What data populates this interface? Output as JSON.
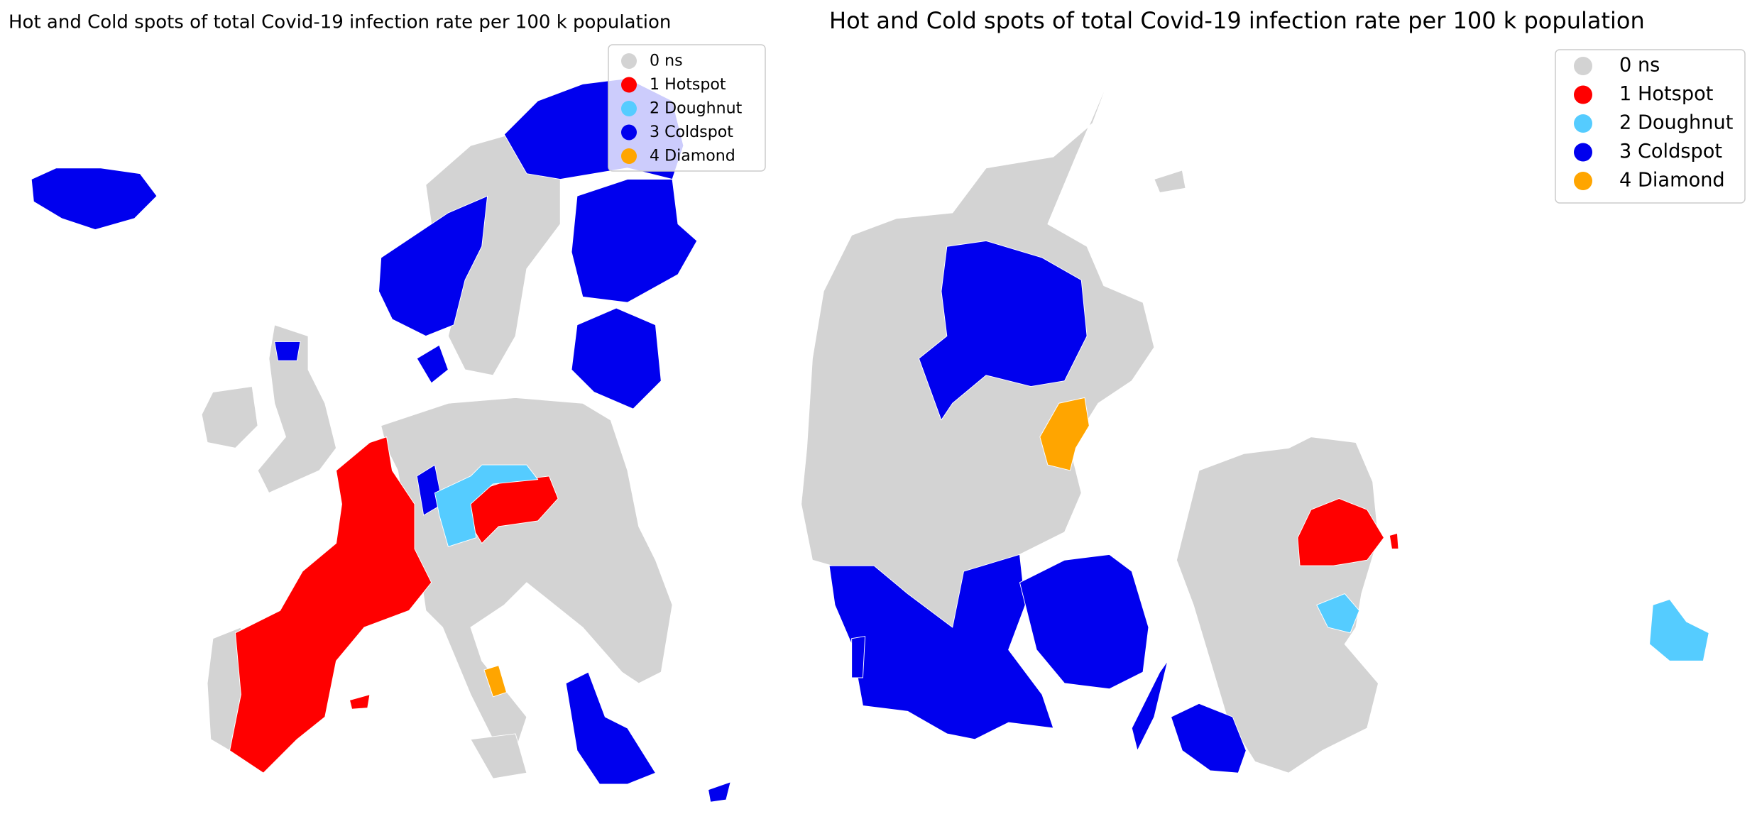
{
  "maps": [
    {
      "title": "Hot and Cold spots of total Covid-19 infection rate per 100 k population",
      "legend": [
        {
          "label": "0 ns",
          "color": "#d3d3d3"
        },
        {
          "label": "1 Hotspot",
          "color": "#ff0000"
        },
        {
          "label": "2 Doughnut",
          "color": "#55ccff"
        },
        {
          "label": "3 Coldspot",
          "color": "#0000ee"
        },
        {
          "label": "4 Diamond",
          "color": "#ffa500"
        }
      ]
    },
    {
      "title": "Hot and Cold spots of total Covid-19 infection rate per 100 k population",
      "legend": [
        {
          "label": "0 ns",
          "color": "#d3d3d3"
        },
        {
          "label": "1 Hotspot",
          "color": "#ff0000"
        },
        {
          "label": "2 Doughnut",
          "color": "#55ccff"
        },
        {
          "label": "3 Coldspot",
          "color": "#0000ee"
        },
        {
          "label": "4 Diamond",
          "color": "#ffa500"
        }
      ]
    }
  ]
}
